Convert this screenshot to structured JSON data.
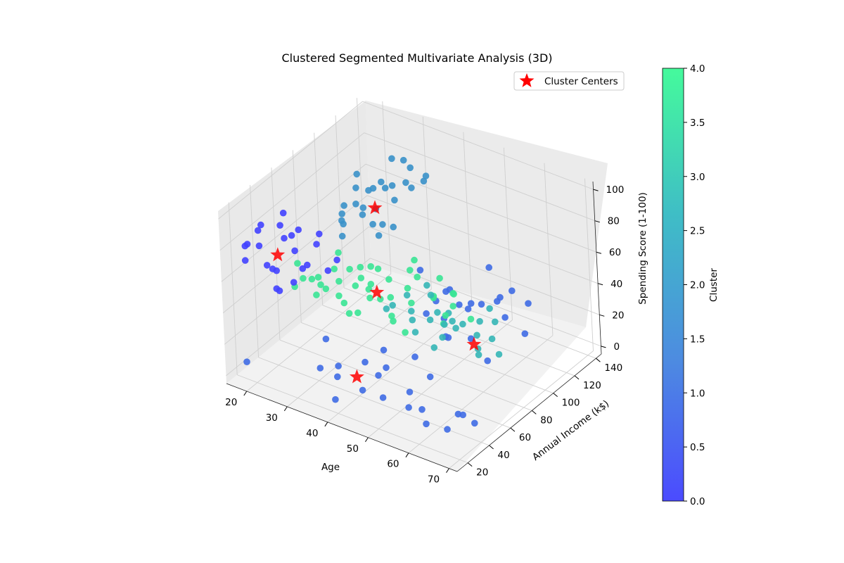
{
  "chart_data": {
    "type": "scatter",
    "projection": "3d",
    "title": "Clustered Segmented Multivariate Analysis (3D)",
    "xlabel": "Age",
    "ylabel": "Annual Income (k$)",
    "zlabel": "Spending Score (1-100)",
    "x_ticks": [
      20,
      30,
      40,
      50,
      60,
      70
    ],
    "y_ticks": [
      20,
      40,
      60,
      80,
      100,
      120,
      140
    ],
    "z_ticks": [
      0,
      20,
      40,
      60,
      80,
      100
    ],
    "xlim": [
      15,
      72
    ],
    "ylim": [
      10,
      145
    ],
    "zlim": [
      -5,
      105
    ],
    "grid": true,
    "legend": {
      "position": "top-right",
      "entries": [
        "Cluster Centers"
      ]
    },
    "colorbar": {
      "label": "Cluster",
      "range": [
        0.0,
        4.0
      ],
      "ticks": [
        "0.0",
        "0.5",
        "1.0",
        "1.5",
        "2.0",
        "2.5",
        "3.0",
        "3.5",
        "4.0"
      ],
      "colors": [
        "#4b4bff",
        "#4d8ce0",
        "#3fbdc6",
        "#45fa9c"
      ]
    },
    "cluster_colors": [
      "#4343ff",
      "#3f6be4",
      "#3a91c9",
      "#35b6b6",
      "#3ae495"
    ],
    "center_color": "#ff0000",
    "centers": [
      {
        "x": 33,
        "y": 87,
        "z": 82
      },
      {
        "x": 25,
        "y": 26,
        "z": 78
      },
      {
        "x": 56,
        "y": 88,
        "z": 17
      },
      {
        "x": 44,
        "y": 24,
        "z": 20
      },
      {
        "x": 40,
        "y": 60,
        "z": 50
      }
    ],
    "series": [
      {
        "cluster": 0,
        "points": [
          {
            "x": 18,
            "y": 22,
            "z": 79
          },
          {
            "x": 19,
            "y": 18,
            "z": 73
          },
          {
            "x": 20,
            "y": 30,
            "z": 90
          },
          {
            "x": 21,
            "y": 24,
            "z": 81
          },
          {
            "x": 22,
            "y": 20,
            "z": 94
          },
          {
            "x": 23,
            "y": 28,
            "z": 66
          },
          {
            "x": 24,
            "y": 33,
            "z": 92
          },
          {
            "x": 25,
            "y": 16,
            "z": 77
          },
          {
            "x": 26,
            "y": 38,
            "z": 75
          },
          {
            "x": 27,
            "y": 19,
            "z": 61
          },
          {
            "x": 28,
            "y": 35,
            "z": 92
          },
          {
            "x": 29,
            "y": 25,
            "z": 65
          },
          {
            "x": 30,
            "y": 30,
            "z": 72
          },
          {
            "x": 31,
            "y": 40,
            "z": 83
          },
          {
            "x": 22,
            "y": 35,
            "z": 60
          },
          {
            "x": 24,
            "y": 43,
            "z": 80
          },
          {
            "x": 27,
            "y": 45,
            "z": 63
          },
          {
            "x": 33,
            "y": 42,
            "z": 67
          },
          {
            "x": 20,
            "y": 17,
            "z": 85
          },
          {
            "x": 26,
            "y": 29,
            "z": 88
          },
          {
            "x": 29,
            "y": 50,
            "z": 82
          },
          {
            "x": 34,
            "y": 47,
            "z": 72
          },
          {
            "x": 23,
            "y": 40,
            "z": 95
          },
          {
            "x": 19,
            "y": 45,
            "z": 40
          }
        ]
      },
      {
        "cluster": 1,
        "points": [
          {
            "x": 36,
            "y": 20,
            "z": 20
          },
          {
            "x": 40,
            "y": 18,
            "z": 5
          },
          {
            "x": 45,
            "y": 25,
            "z": 12
          },
          {
            "x": 50,
            "y": 22,
            "z": 28
          },
          {
            "x": 55,
            "y": 30,
            "z": 8
          },
          {
            "x": 60,
            "y": 24,
            "z": 15
          },
          {
            "x": 65,
            "y": 28,
            "z": 5
          },
          {
            "x": 70,
            "y": 35,
            "z": 10
          },
          {
            "x": 48,
            "y": 35,
            "z": 35
          },
          {
            "x": 58,
            "y": 40,
            "z": 25
          },
          {
            "x": 42,
            "y": 15,
            "z": 30
          },
          {
            "x": 52,
            "y": 18,
            "z": 18
          },
          {
            "x": 62,
            "y": 20,
            "z": 10
          },
          {
            "x": 68,
            "y": 32,
            "z": 15
          },
          {
            "x": 38,
            "y": 28,
            "z": 12
          },
          {
            "x": 56,
            "y": 28,
            "z": 20
          },
          {
            "x": 47,
            "y": 40,
            "z": 20
          },
          {
            "x": 53,
            "y": 45,
            "z": 30
          },
          {
            "x": 64,
            "y": 42,
            "z": 6
          },
          {
            "x": 44,
            "y": 32,
            "z": 25
          },
          {
            "x": 19,
            "y": 15,
            "z": 10
          },
          {
            "x": 35,
            "y": 30,
            "z": 32
          },
          {
            "x": 58,
            "y": 58,
            "z": 40
          },
          {
            "x": 54,
            "y": 70,
            "z": 30
          },
          {
            "x": 48,
            "y": 75,
            "z": 36
          },
          {
            "x": 51,
            "y": 80,
            "z": 33
          },
          {
            "x": 57,
            "y": 82,
            "z": 25
          },
          {
            "x": 62,
            "y": 78,
            "z": 18
          },
          {
            "x": 50,
            "y": 90,
            "z": 45
          },
          {
            "x": 45,
            "y": 95,
            "z": 30
          },
          {
            "x": 40,
            "y": 100,
            "z": 42
          },
          {
            "x": 48,
            "y": 105,
            "z": 25
          },
          {
            "x": 55,
            "y": 100,
            "z": 35
          },
          {
            "x": 58,
            "y": 110,
            "z": 24
          },
          {
            "x": 46,
            "y": 120,
            "z": 12
          },
          {
            "x": 52,
            "y": 125,
            "z": 20
          },
          {
            "x": 44,
            "y": 130,
            "z": 8
          },
          {
            "x": 50,
            "y": 135,
            "z": 15
          },
          {
            "x": 55,
            "y": 128,
            "z": 28
          },
          {
            "x": 42,
            "y": 115,
            "z": 22
          },
          {
            "x": 47,
            "y": 137,
            "z": 30
          },
          {
            "x": 57,
            "y": 135,
            "z": 18
          },
          {
            "x": 60,
            "y": 120,
            "z": 10
          }
        ]
      },
      {
        "cluster": 2,
        "points": [
          {
            "x": 30,
            "y": 70,
            "z": 90
          },
          {
            "x": 32,
            "y": 80,
            "z": 85
          },
          {
            "x": 35,
            "y": 90,
            "z": 95
          },
          {
            "x": 28,
            "y": 75,
            "z": 80
          },
          {
            "x": 34,
            "y": 100,
            "z": 90
          },
          {
            "x": 36,
            "y": 110,
            "z": 85
          },
          {
            "x": 31,
            "y": 95,
            "z": 75
          },
          {
            "x": 29,
            "y": 85,
            "z": 92
          },
          {
            "x": 33,
            "y": 105,
            "z": 77
          },
          {
            "x": 37,
            "y": 120,
            "z": 88
          },
          {
            "x": 30,
            "y": 115,
            "z": 95
          },
          {
            "x": 32,
            "y": 88,
            "z": 70
          },
          {
            "x": 34,
            "y": 72,
            "z": 87
          },
          {
            "x": 38,
            "y": 98,
            "z": 97
          },
          {
            "x": 27,
            "y": 78,
            "z": 73
          },
          {
            "x": 35,
            "y": 125,
            "z": 80
          },
          {
            "x": 31,
            "y": 65,
            "z": 82
          },
          {
            "x": 36,
            "y": 92,
            "z": 70
          },
          {
            "x": 33,
            "y": 82,
            "z": 96
          },
          {
            "x": 29,
            "y": 108,
            "z": 83
          },
          {
            "x": 32,
            "y": 60,
            "z": 78
          },
          {
            "x": 30,
            "y": 97,
            "z": 86
          },
          {
            "x": 34,
            "y": 117,
            "z": 92
          },
          {
            "x": 37,
            "y": 75,
            "z": 75
          },
          {
            "x": 28,
            "y": 90,
            "z": 97
          },
          {
            "x": 35,
            "y": 86,
            "z": 74
          },
          {
            "x": 31,
            "y": 122,
            "z": 91
          },
          {
            "x": 33,
            "y": 70,
            "z": 94
          }
        ]
      },
      {
        "cluster": 3,
        "points": [
          {
            "x": 45,
            "y": 50,
            "z": 50
          },
          {
            "x": 50,
            "y": 55,
            "z": 45
          },
          {
            "x": 55,
            "y": 60,
            "z": 52
          },
          {
            "x": 60,
            "y": 58,
            "z": 48
          },
          {
            "x": 65,
            "y": 62,
            "z": 55
          },
          {
            "x": 48,
            "y": 45,
            "z": 58
          },
          {
            "x": 52,
            "y": 50,
            "z": 42
          },
          {
            "x": 58,
            "y": 55,
            "z": 50
          },
          {
            "x": 62,
            "y": 48,
            "z": 60
          },
          {
            "x": 67,
            "y": 52,
            "z": 45
          },
          {
            "x": 70,
            "y": 60,
            "z": 40
          },
          {
            "x": 68,
            "y": 65,
            "z": 56
          },
          {
            "x": 55,
            "y": 70,
            "z": 46
          },
          {
            "x": 47,
            "y": 62,
            "z": 54
          },
          {
            "x": 63,
            "y": 66,
            "z": 42
          },
          {
            "x": 57,
            "y": 46,
            "z": 57
          },
          {
            "x": 66,
            "y": 56,
            "z": 38
          },
          {
            "x": 53,
            "y": 62,
            "z": 60
          },
          {
            "x": 59,
            "y": 68,
            "z": 44
          },
          {
            "x": 49,
            "y": 58,
            "z": 48
          },
          {
            "x": 64,
            "y": 75,
            "z": 55
          },
          {
            "x": 61,
            "y": 42,
            "z": 52
          },
          {
            "x": 56,
            "y": 52,
            "z": 35
          },
          {
            "x": 51,
            "y": 66,
            "z": 62
          },
          {
            "x": 69,
            "y": 58,
            "z": 50
          }
        ]
      },
      {
        "cluster": 4,
        "points": [
          {
            "x": 25,
            "y": 40,
            "z": 50
          },
          {
            "x": 28,
            "y": 45,
            "z": 55
          },
          {
            "x": 30,
            "y": 50,
            "z": 48
          },
          {
            "x": 32,
            "y": 55,
            "z": 52
          },
          {
            "x": 35,
            "y": 48,
            "z": 45
          },
          {
            "x": 38,
            "y": 60,
            "z": 50
          },
          {
            "x": 40,
            "y": 55,
            "z": 58
          },
          {
            "x": 42,
            "y": 65,
            "z": 46
          },
          {
            "x": 45,
            "y": 70,
            "z": 52
          },
          {
            "x": 48,
            "y": 62,
            "z": 50
          },
          {
            "x": 50,
            "y": 75,
            "z": 48
          },
          {
            "x": 52,
            "y": 68,
            "z": 55
          },
          {
            "x": 54,
            "y": 78,
            "z": 45
          },
          {
            "x": 56,
            "y": 72,
            "z": 58
          },
          {
            "x": 26,
            "y": 58,
            "z": 47
          },
          {
            "x": 29,
            "y": 62,
            "z": 53
          },
          {
            "x": 33,
            "y": 66,
            "z": 44
          },
          {
            "x": 36,
            "y": 70,
            "z": 57
          },
          {
            "x": 39,
            "y": 75,
            "z": 49
          },
          {
            "x": 43,
            "y": 80,
            "z": 56
          },
          {
            "x": 46,
            "y": 52,
            "z": 42
          },
          {
            "x": 24,
            "y": 47,
            "z": 60
          },
          {
            "x": 27,
            "y": 52,
            "z": 40
          },
          {
            "x": 31,
            "y": 42,
            "z": 56
          },
          {
            "x": 34,
            "y": 58,
            "z": 60
          },
          {
            "x": 37,
            "y": 45,
            "z": 42
          },
          {
            "x": 41,
            "y": 50,
            "z": 53
          },
          {
            "x": 44,
            "y": 58,
            "z": 40
          },
          {
            "x": 47,
            "y": 72,
            "z": 60
          },
          {
            "x": 53,
            "y": 82,
            "z": 50
          },
          {
            "x": 55,
            "y": 65,
            "z": 42
          },
          {
            "x": 49,
            "y": 85,
            "z": 54
          },
          {
            "x": 23,
            "y": 55,
            "z": 45
          },
          {
            "x": 28,
            "y": 70,
            "z": 58
          },
          {
            "x": 32,
            "y": 75,
            "z": 43
          },
          {
            "x": 36,
            "y": 40,
            "z": 55
          },
          {
            "x": 40,
            "y": 42,
            "z": 47
          },
          {
            "x": 45,
            "y": 45,
            "z": 59
          },
          {
            "x": 50,
            "y": 48,
            "z": 41
          },
          {
            "x": 57,
            "y": 60,
            "z": 52
          },
          {
            "x": 60,
            "y": 72,
            "z": 46
          },
          {
            "x": 35,
            "y": 80,
            "z": 49
          },
          {
            "x": 42,
            "y": 88,
            "z": 57
          },
          {
            "x": 30,
            "y": 82,
            "z": 44
          }
        ]
      }
    ]
  }
}
